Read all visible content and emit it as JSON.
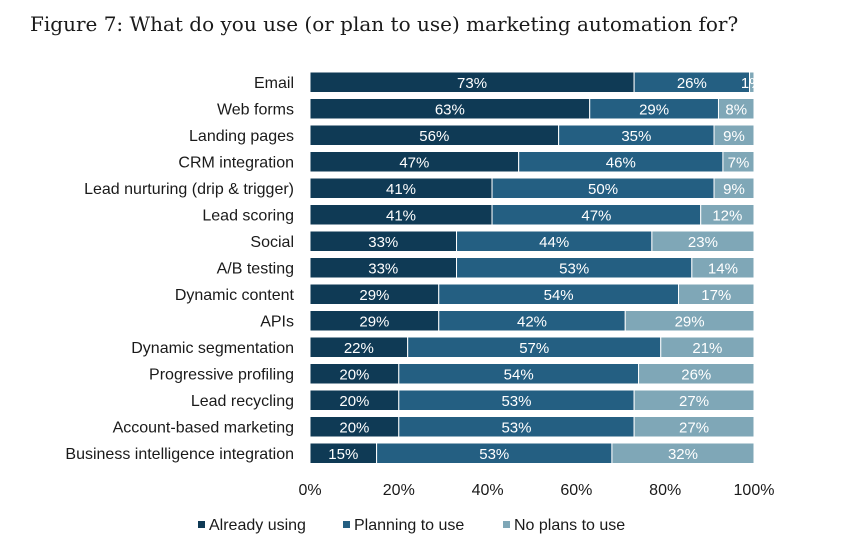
{
  "chart_data": {
    "type": "bar",
    "orientation": "horizontal",
    "stacked": true,
    "title": "Figure 7: What do you use (or plan to use) marketing automation for?",
    "categories": [
      "Email",
      "Web forms",
      "Landing pages",
      "CRM integration",
      "Lead nurturing (drip & trigger)",
      "Lead scoring",
      "Social",
      "A/B testing",
      "Dynamic content",
      "APIs",
      "Dynamic segmentation",
      "Progressive profiling",
      "Lead recycling",
      "Account-based marketing",
      "Business intelligence integration"
    ],
    "series": [
      {
        "name": "Already using",
        "color": "#0f3a55",
        "values": [
          73,
          63,
          56,
          47,
          41,
          41,
          33,
          33,
          29,
          29,
          22,
          20,
          20,
          20,
          15
        ]
      },
      {
        "name": "Planning to use",
        "color": "#245f82",
        "values": [
          26,
          29,
          35,
          46,
          50,
          47,
          44,
          53,
          54,
          42,
          57,
          54,
          53,
          53,
          53
        ]
      },
      {
        "name": "No plans to use",
        "color": "#7fa7b7",
        "values": [
          1,
          8,
          9,
          7,
          9,
          12,
          23,
          14,
          17,
          29,
          21,
          26,
          27,
          27,
          32
        ]
      }
    ],
    "xlim": [
      0,
      100
    ],
    "x_ticks": [
      "0%",
      "20%",
      "40%",
      "60%",
      "80%",
      "100%"
    ],
    "value_suffix": "%",
    "legend_position": "bottom",
    "grid": false
  }
}
